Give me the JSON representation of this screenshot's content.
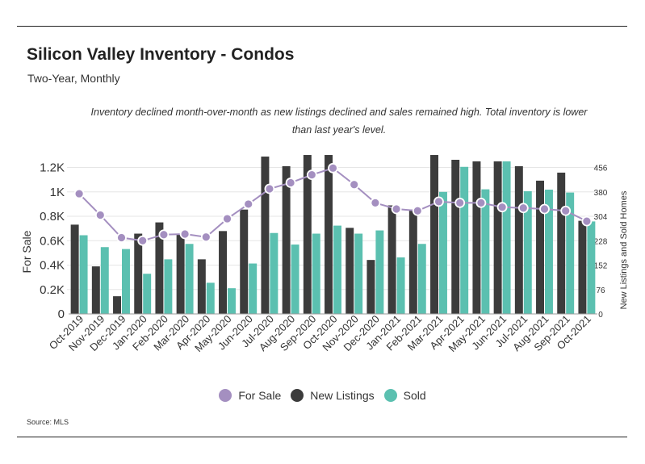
{
  "header": {
    "title": "Silicon Valley Inventory - Condos",
    "subtitle": "Two-Year, Monthly"
  },
  "annotation": "Inventory declined month-over-month as new listings declined and sales remained high. Total inventory is lower than last year's level.",
  "source": "Source:  MLS",
  "legend": [
    {
      "label": "For Sale",
      "color": "#a48fc0",
      "shape": "circle"
    },
    {
      "label": "New Listings",
      "color": "#3c3c3c",
      "shape": "circle"
    },
    {
      "label": "Sold",
      "color": "#5bc0b0",
      "shape": "circle"
    }
  ],
  "chart_data": {
    "type": "bar",
    "title": "Silicon Valley Inventory - Condos",
    "subtitle": "Two-Year, Monthly",
    "categories": [
      "Oct-2019",
      "Nov-2019",
      "Dec-2019",
      "Jan-2020",
      "Feb-2020",
      "Mar-2020",
      "Apr-2020",
      "May-2020",
      "Jun-2020",
      "Jul-2020",
      "Aug-2020",
      "Sep-2020",
      "Oct-2020",
      "Nov-2020",
      "Dec-2020",
      "Jan-2021",
      "Feb-2021",
      "Mar-2021",
      "Apr-2021",
      "May-2021",
      "Jun-2021",
      "Jul-2021",
      "Aug-2021",
      "Sep-2021",
      "Oct-2021"
    ],
    "left_axis": {
      "label": "For Sale",
      "ticks": [
        "0",
        "0.2K",
        "0.4K",
        "0.6K",
        "0.8K",
        "1K",
        "1.2K"
      ],
      "range": [
        0,
        1250
      ]
    },
    "right_axis": {
      "label": "New Listings and Sold Homes",
      "ticks": [
        "0",
        "76",
        "152",
        "228",
        "304",
        "380",
        "456"
      ],
      "range": [
        0,
        475
      ]
    },
    "series": [
      {
        "name": "New Listings",
        "type": "bar",
        "axis": "right",
        "color": "#3c3c3c",
        "values": [
          278,
          148,
          55,
          250,
          285,
          250,
          170,
          258,
          325,
          490,
          460,
          495,
          495,
          268,
          168,
          338,
          325,
          495,
          480,
          475,
          475,
          460,
          415,
          440,
          290
        ]
      },
      {
        "name": "Sold",
        "type": "bar",
        "axis": "right",
        "color": "#5bc0b0",
        "values": [
          245,
          208,
          202,
          125,
          170,
          218,
          97,
          80,
          157,
          252,
          216,
          250,
          275,
          250,
          260,
          176,
          218,
          380,
          458,
          388,
          475,
          382,
          387,
          378,
          288
        ]
      },
      {
        "name": "For Sale",
        "type": "line",
        "axis": "left",
        "color": "#a48fc0",
        "values": [
          985,
          810,
          625,
          600,
          650,
          655,
          630,
          780,
          900,
          1025,
          1075,
          1140,
          1195,
          1060,
          910,
          860,
          845,
          920,
          910,
          910,
          875,
          868,
          860,
          845,
          760
        ]
      }
    ],
    "grid": true,
    "legend_position": "bottom-center"
  }
}
